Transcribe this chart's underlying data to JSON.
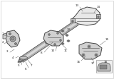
{
  "fig_bg": "white",
  "lc": "#444444",
  "shaft_color": "#909090",
  "part_fill": "#d0d0d0",
  "part_fill2": "#c0c0c0",
  "dark_fill": "#888888",
  "light_fill": "#e8e8e8",
  "inset_bg": "#f5f5f5",
  "label_color": "#222222",
  "label_fs": 3.0,
  "leader_color": "#666666"
}
